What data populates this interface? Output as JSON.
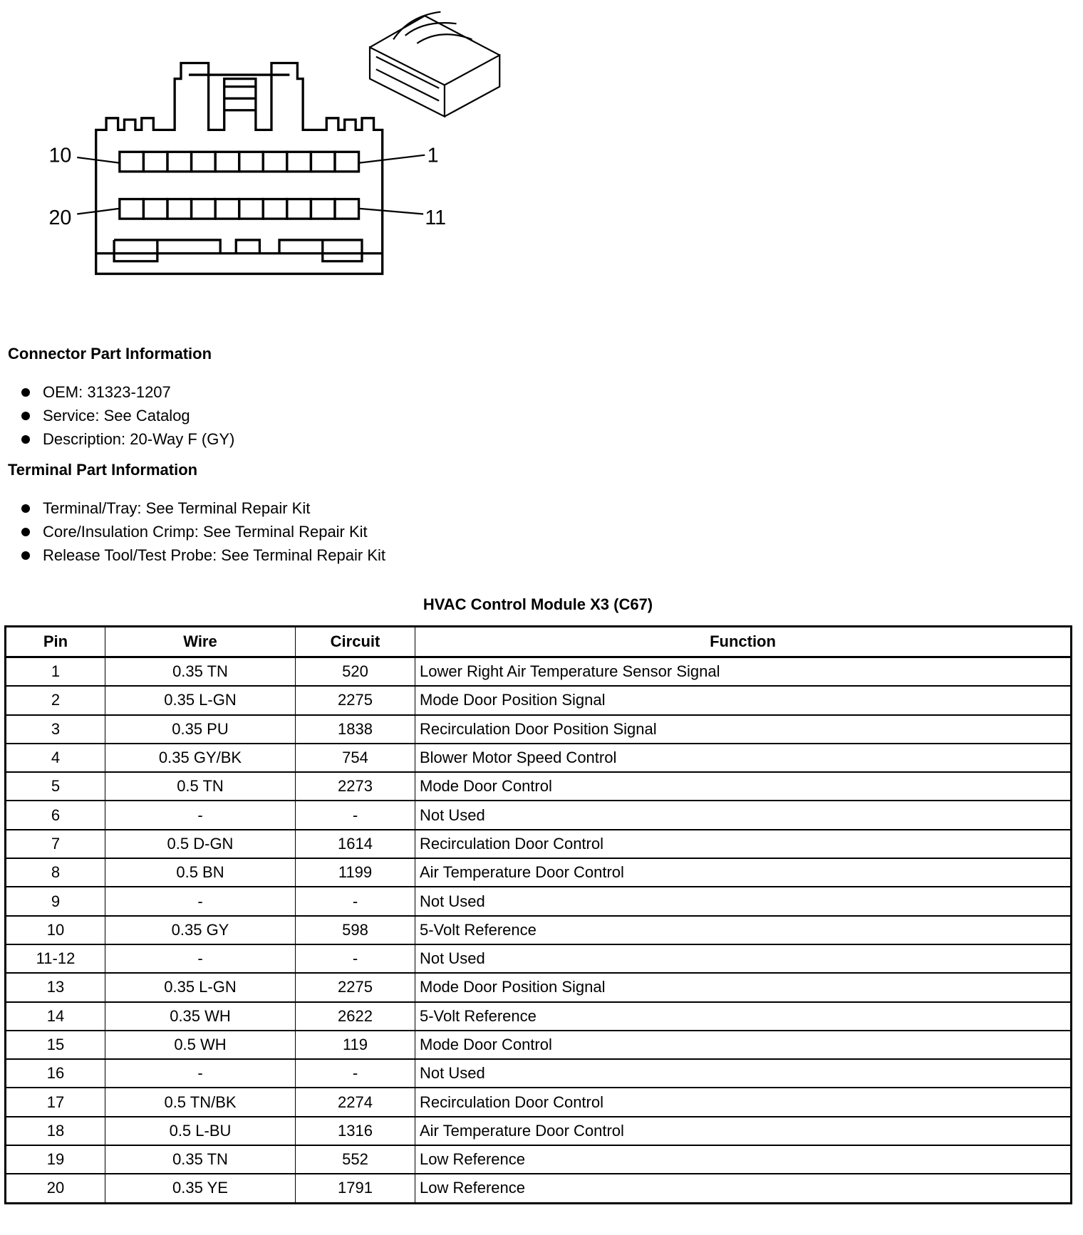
{
  "diagram": {
    "labels": {
      "top_left": "10",
      "top_right": "1",
      "bottom_left": "20",
      "bottom_right": "11"
    }
  },
  "connector_info": {
    "heading": "Connector Part Information",
    "items": [
      "OEM: 31323-1207",
      "Service: See Catalog",
      "Description: 20-Way F (GY)"
    ]
  },
  "terminal_info": {
    "heading": "Terminal Part Information",
    "items": [
      "Terminal/Tray: See Terminal Repair Kit",
      "Core/Insulation Crimp: See Terminal Repair Kit",
      "Release Tool/Test Probe: See Terminal Repair Kit"
    ]
  },
  "table": {
    "title": "HVAC Control Module X3 (C67)",
    "headers": [
      "Pin",
      "Wire",
      "Circuit",
      "Function"
    ],
    "rows": [
      [
        "1",
        "0.35 TN",
        "520",
        "Lower Right Air Temperature Sensor Signal"
      ],
      [
        "2",
        "0.35 L-GN",
        "2275",
        "Mode Door Position Signal"
      ],
      [
        "3",
        "0.35 PU",
        "1838",
        "Recirculation Door Position Signal"
      ],
      [
        "4",
        "0.35 GY/BK",
        "754",
        "Blower Motor Speed Control"
      ],
      [
        "5",
        "0.5 TN",
        "2273",
        "Mode Door Control"
      ],
      [
        "6",
        "-",
        "-",
        "Not Used"
      ],
      [
        "7",
        "0.5 D-GN",
        "1614",
        "Recirculation Door Control"
      ],
      [
        "8",
        "0.5 BN",
        "1199",
        "Air Temperature Door Control"
      ],
      [
        "9",
        "-",
        "-",
        "Not Used"
      ],
      [
        "10",
        "0.35 GY",
        "598",
        "5-Volt Reference"
      ],
      [
        "11-12",
        "-",
        "-",
        "Not Used"
      ],
      [
        "13",
        "0.35 L-GN",
        "2275",
        "Mode Door Position Signal"
      ],
      [
        "14",
        "0.35 WH",
        "2622",
        "5-Volt Reference"
      ],
      [
        "15",
        "0.5 WH",
        "119",
        "Mode Door Control"
      ],
      [
        "16",
        "-",
        "-",
        "Not Used"
      ],
      [
        "17",
        "0.5 TN/BK",
        "2274",
        "Recirculation Door Control"
      ],
      [
        "18",
        "0.5 L-BU",
        "1316",
        "Air Temperature Door Control"
      ],
      [
        "19",
        "0.35 TN",
        "552",
        "Low Reference"
      ],
      [
        "20",
        "0.35 YE",
        "1791",
        "Low Reference"
      ]
    ]
  }
}
